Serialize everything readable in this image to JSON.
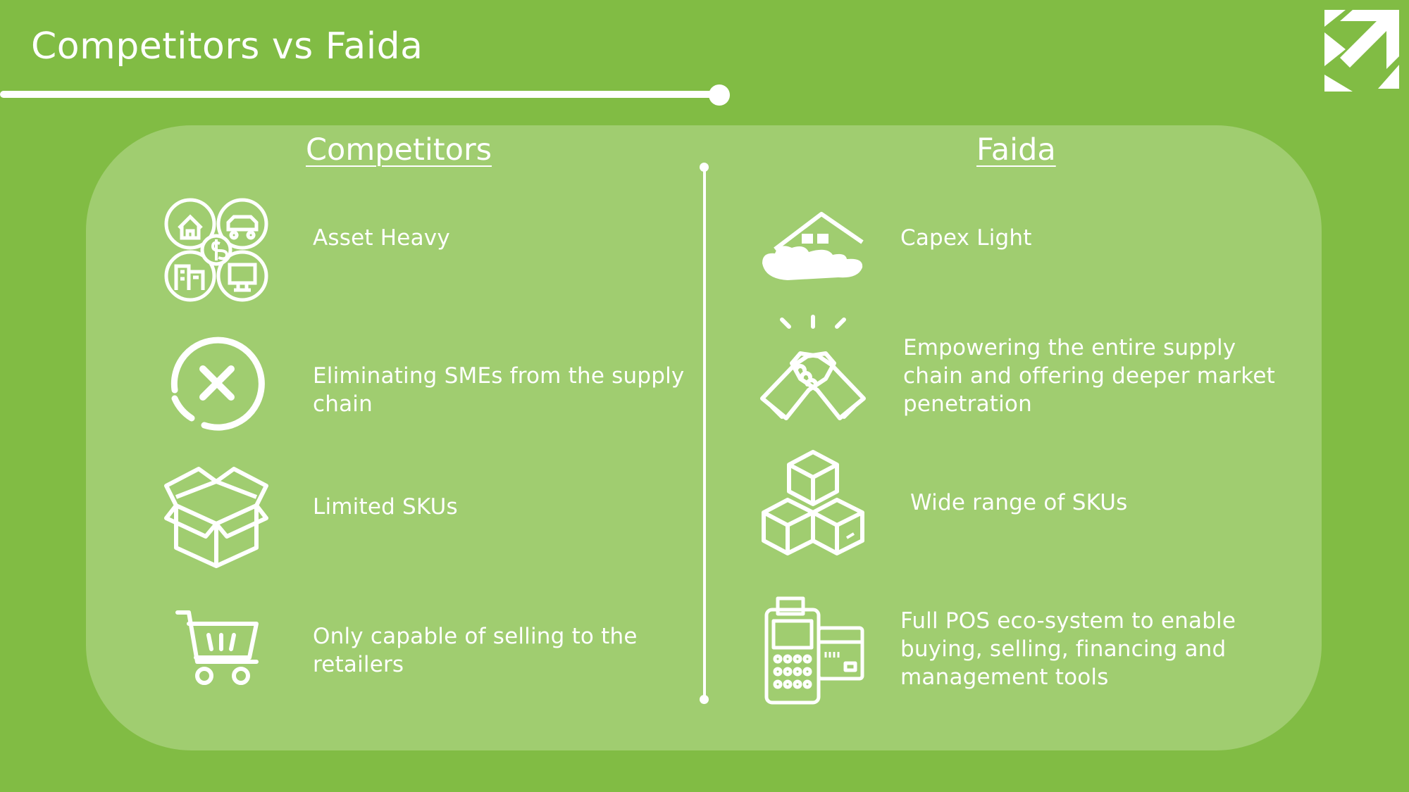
{
  "slide": {
    "title": "Competitors vs Faida"
  },
  "columns": {
    "left_heading": "Competitors",
    "right_heading": "Faida"
  },
  "competitors": [
    {
      "icon": "assets-icon",
      "text": "Asset Heavy"
    },
    {
      "icon": "x-circle-icon",
      "text": "Eliminating SMEs from the supply chain"
    },
    {
      "icon": "open-box-icon",
      "text": "Limited SKUs"
    },
    {
      "icon": "shopping-cart-icon",
      "text": "Only capable of selling to the retailers"
    }
  ],
  "faida": [
    {
      "icon": "house-on-cloud-icon",
      "text": "Capex Light"
    },
    {
      "icon": "handshake-icon",
      "text": "Empowering the entire supply chain and offering deeper market penetration"
    },
    {
      "icon": "stacked-boxes-icon",
      "text": "Wide range of SKUs"
    },
    {
      "icon": "pos-terminal-icon",
      "text": "Full POS eco-system to enable buying, selling, financing and management tools"
    }
  ],
  "colors": {
    "background": "#81bc44",
    "panel": "#a0cd70",
    "foreground": "#ffffff"
  }
}
